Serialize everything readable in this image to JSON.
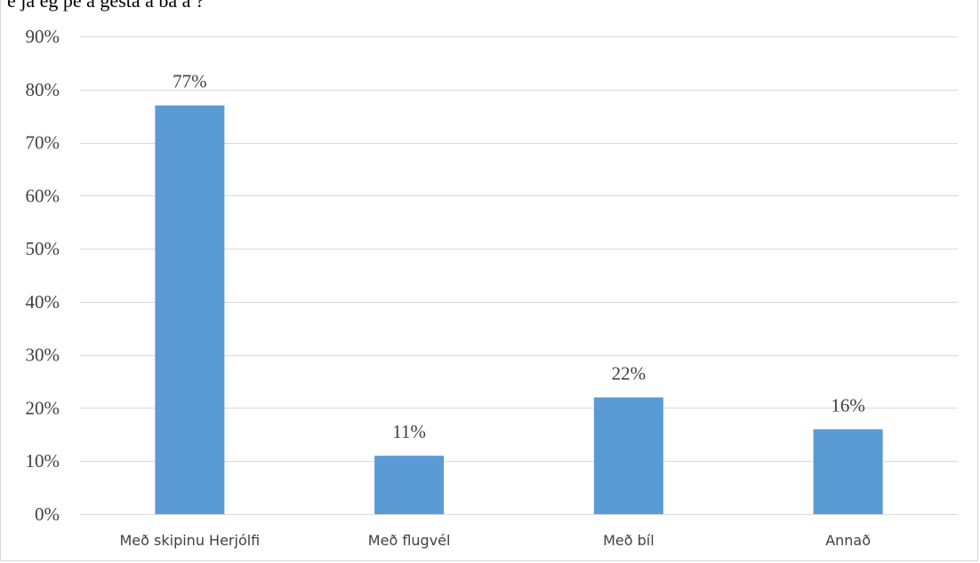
{
  "caption": "e ja  eg  pe  a gesta  a  ba   a   ?",
  "chart_data": {
    "type": "bar",
    "categories": [
      "Með skipinu Herjólfi",
      "Með flugvél",
      "Með bíl",
      "Annað"
    ],
    "values": [
      77,
      11,
      22,
      16
    ],
    "data_labels": [
      "77%",
      "11%",
      "22%",
      "16%"
    ],
    "ylim": [
      0,
      90
    ],
    "yticks": [
      0,
      10,
      20,
      30,
      40,
      50,
      60,
      70,
      80,
      90
    ],
    "ytick_labels": [
      "0%",
      "10%",
      "20%",
      "30%",
      "40%",
      "50%",
      "60%",
      "70%",
      "80%",
      "90%"
    ],
    "grid": true,
    "title": "",
    "xlabel": "",
    "ylabel": "",
    "bar_color": "#5b9bd5",
    "grid_color": "#d9d9d9",
    "text_color": "#404040"
  }
}
